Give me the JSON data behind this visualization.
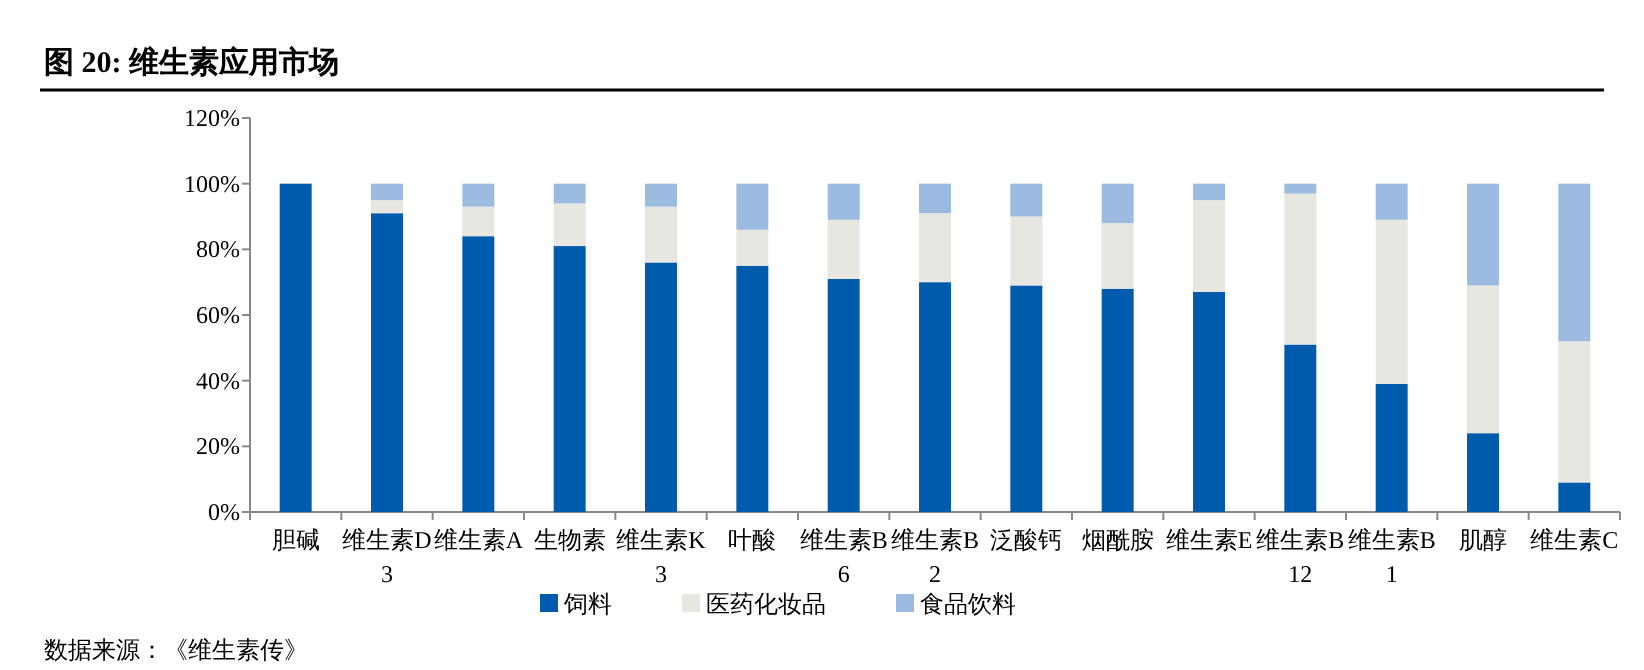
{
  "chart_data": {
    "type": "bar",
    "stacked": true,
    "title": "图 20: 维生素应用市场",
    "categories": [
      "胆碱",
      "维生素D3",
      "维生素A",
      "生物素",
      "维生素K3",
      "叶酸",
      "维生素B6",
      "维生素B2",
      "泛酸钙",
      "烟酰胺",
      "维生素E",
      "维生素B12",
      "维生素B1",
      "肌醇",
      "维生素C"
    ],
    "series": [
      {
        "name": "饲料",
        "color": "#005bac",
        "values": [
          100,
          91,
          84,
          81,
          76,
          75,
          71,
          70,
          69,
          68,
          67,
          51,
          39,
          24,
          9
        ]
      },
      {
        "name": "医药化妆品",
        "color": "#e7e6e1",
        "values": [
          0,
          4,
          9,
          13,
          17,
          11,
          18,
          21,
          21,
          20,
          28,
          46,
          50,
          45,
          43
        ]
      },
      {
        "name": "食品饮料",
        "color": "#9bbce0",
        "values": [
          0,
          5,
          7,
          6,
          7,
          14,
          11,
          9,
          10,
          12,
          5,
          3,
          11,
          31,
          48
        ]
      }
    ],
    "ylim": [
      0,
      120
    ],
    "yticks": [
      {
        "value": 0,
        "label": "0%"
      },
      {
        "value": 20,
        "label": "20%"
      },
      {
        "value": 40,
        "label": "40%"
      },
      {
        "value": 60,
        "label": "60%"
      },
      {
        "value": 80,
        "label": "80%"
      },
      {
        "value": 100,
        "label": "100%"
      },
      {
        "value": 120,
        "label": "120%"
      }
    ],
    "legend": "bottom",
    "grid": false,
    "annotations": [
      "数据来源：《维生素传》"
    ]
  }
}
